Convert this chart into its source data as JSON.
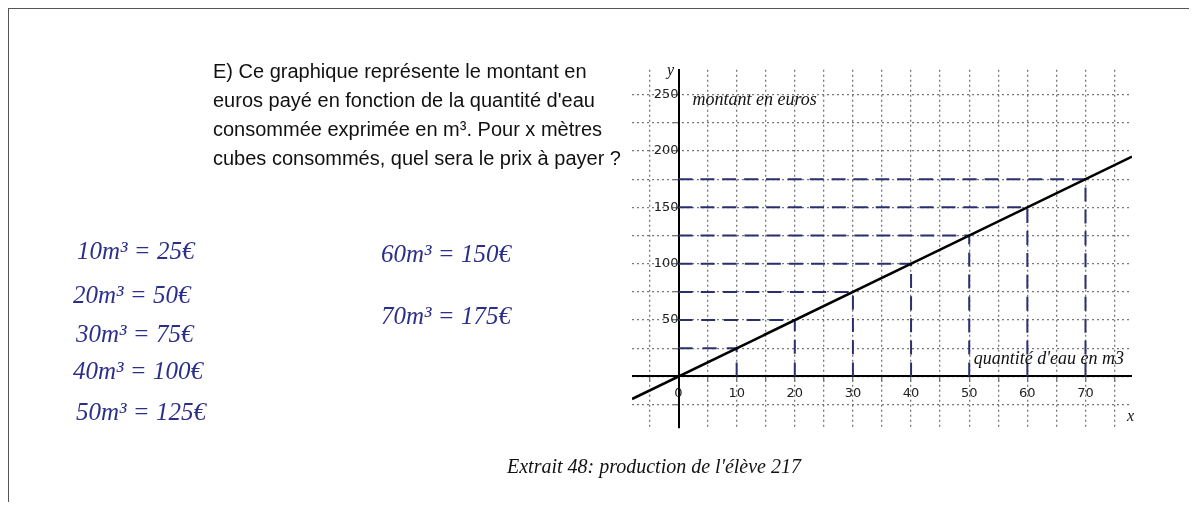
{
  "chart_data": {
    "type": "line",
    "title": "E) Ce graphique représente le montant en euros payé en fonction de la quantité d'eau consommée exprimée en m³. Pour x mètres cubes consommés, quel sera le prix à payer ?",
    "xlabel": "quantité d'eau en m3",
    "ylabel": "montant en euros",
    "xlim": [
      -8,
      78
    ],
    "ylim": [
      -45,
      272
    ],
    "xticks": [
      {
        "value": -5,
        "label": null
      },
      0,
      {
        "value": 5,
        "label": null
      },
      10,
      {
        "value": 15,
        "label": null
      },
      20,
      {
        "value": 25,
        "label": null
      },
      30,
      {
        "value": 35,
        "label": null
      },
      40,
      {
        "value": 45,
        "label": null
      },
      50,
      {
        "value": 55,
        "label": null
      },
      60,
      {
        "value": 65,
        "label": null
      },
      70,
      {
        "value": 75,
        "label": null
      }
    ],
    "yticks": [
      {
        "value": -25,
        "label": null
      },
      {
        "value": 0,
        "label": null
      },
      {
        "value": 25,
        "label": null
      },
      50,
      {
        "value": 75,
        "label": null
      },
      100,
      {
        "value": 125,
        "label": null
      },
      150,
      {
        "value": 175,
        "label": null
      },
      200,
      {
        "value": 225,
        "label": null
      },
      250
    ],
    "grid": true,
    "legend": false,
    "marker": "none",
    "series": [
      {
        "color": "#000000",
        "x": [
          -8,
          78
        ],
        "values": [
          -20,
          195
        ]
      },
      {
        "color": "#2b2f6e",
        "line_style": "dashed",
        "x": [
          0,
          10,
          10
        ],
        "values": [
          25,
          25,
          0
        ]
      },
      {
        "color": "#2b2f6e",
        "line_style": "dashed",
        "x": [
          0,
          20,
          20
        ],
        "values": [
          50,
          50,
          0
        ]
      },
      {
        "color": "#2b2f6e",
        "line_style": "dashed",
        "x": [
          0,
          30,
          30
        ],
        "values": [
          75,
          75,
          0
        ]
      },
      {
        "color": "#2b2f6e",
        "line_style": "dashed",
        "x": [
          0,
          40,
          40
        ],
        "values": [
          100,
          100,
          0
        ]
      },
      {
        "color": "#2b2f6e",
        "line_style": "dashed",
        "x": [
          0,
          50,
          50
        ],
        "values": [
          125,
          125,
          0
        ]
      },
      {
        "color": "#2b2f6e",
        "line_style": "dashed",
        "x": [
          0,
          60,
          60
        ],
        "values": [
          150,
          150,
          0
        ]
      },
      {
        "color": "#2b2f6e",
        "line_style": "dashed",
        "x": [
          0,
          70,
          70
        ],
        "values": [
          175,
          175,
          0
        ]
      }
    ],
    "annotations": [
      "10m³ = 25€",
      "20m³ = 50€",
      "30m³ = 75€",
      "40m³ = 100€",
      "50m³ = 125€",
      "60m³ = 150€",
      "70m³ = 175€",
      "y",
      "x",
      "Extrait 48: production de l'élève 217"
    ]
  }
}
